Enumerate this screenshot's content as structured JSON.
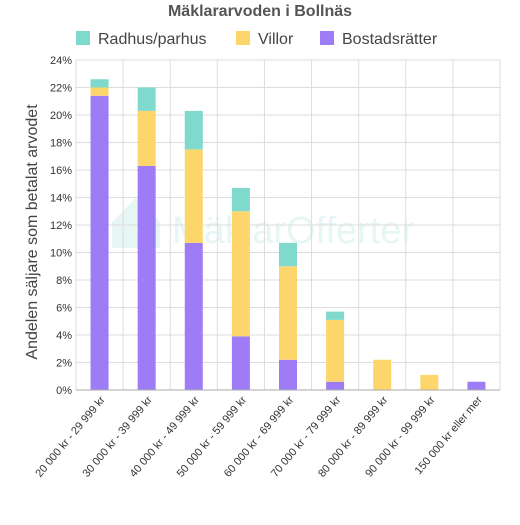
{
  "chart_data": {
    "type": "bar",
    "stacked": true,
    "title": "Mäklararvoden i Bollnäs",
    "xlabel": "",
    "ylabel": "Andelen säljare som betalat arvodet",
    "ylim": [
      0,
      24
    ],
    "yticks": [
      "0%",
      "2%",
      "4%",
      "6%",
      "8%",
      "10%",
      "12%",
      "14%",
      "16%",
      "18%",
      "20%",
      "22%",
      "24%"
    ],
    "grid": true,
    "legend_position": "top",
    "categories": [
      "20 000 kr - 29 999 kr",
      "30 000 kr - 39 999 kr",
      "40 000 kr - 49 999 kr",
      "50 000 kr - 59 999 kr",
      "60 000 kr - 69 999 kr",
      "70 000 kr - 79 999 kr",
      "80 000 kr - 89 999 kr",
      "90 000 kr - 99 999 kr",
      "150 000 kr eller mer"
    ],
    "series": [
      {
        "name": "Bostadsrätter",
        "color": "#9d7cf5",
        "values": [
          21.4,
          16.3,
          10.7,
          3.9,
          2.2,
          0.6,
          0,
          0,
          0.6
        ]
      },
      {
        "name": "Villor",
        "color": "#fdd66b",
        "values": [
          0.6,
          4.0,
          6.8,
          9.1,
          6.8,
          4.5,
          2.2,
          1.1,
          0
        ]
      },
      {
        "name": "Radhus/parhus",
        "color": "#7fd9cd",
        "values": [
          0.6,
          1.7,
          2.8,
          1.7,
          1.7,
          0.6,
          0,
          0,
          0
        ]
      }
    ]
  },
  "legend_order": [
    "Radhus/parhus",
    "Villor",
    "Bostadsrätter"
  ],
  "watermark": "MäklarOfferter"
}
